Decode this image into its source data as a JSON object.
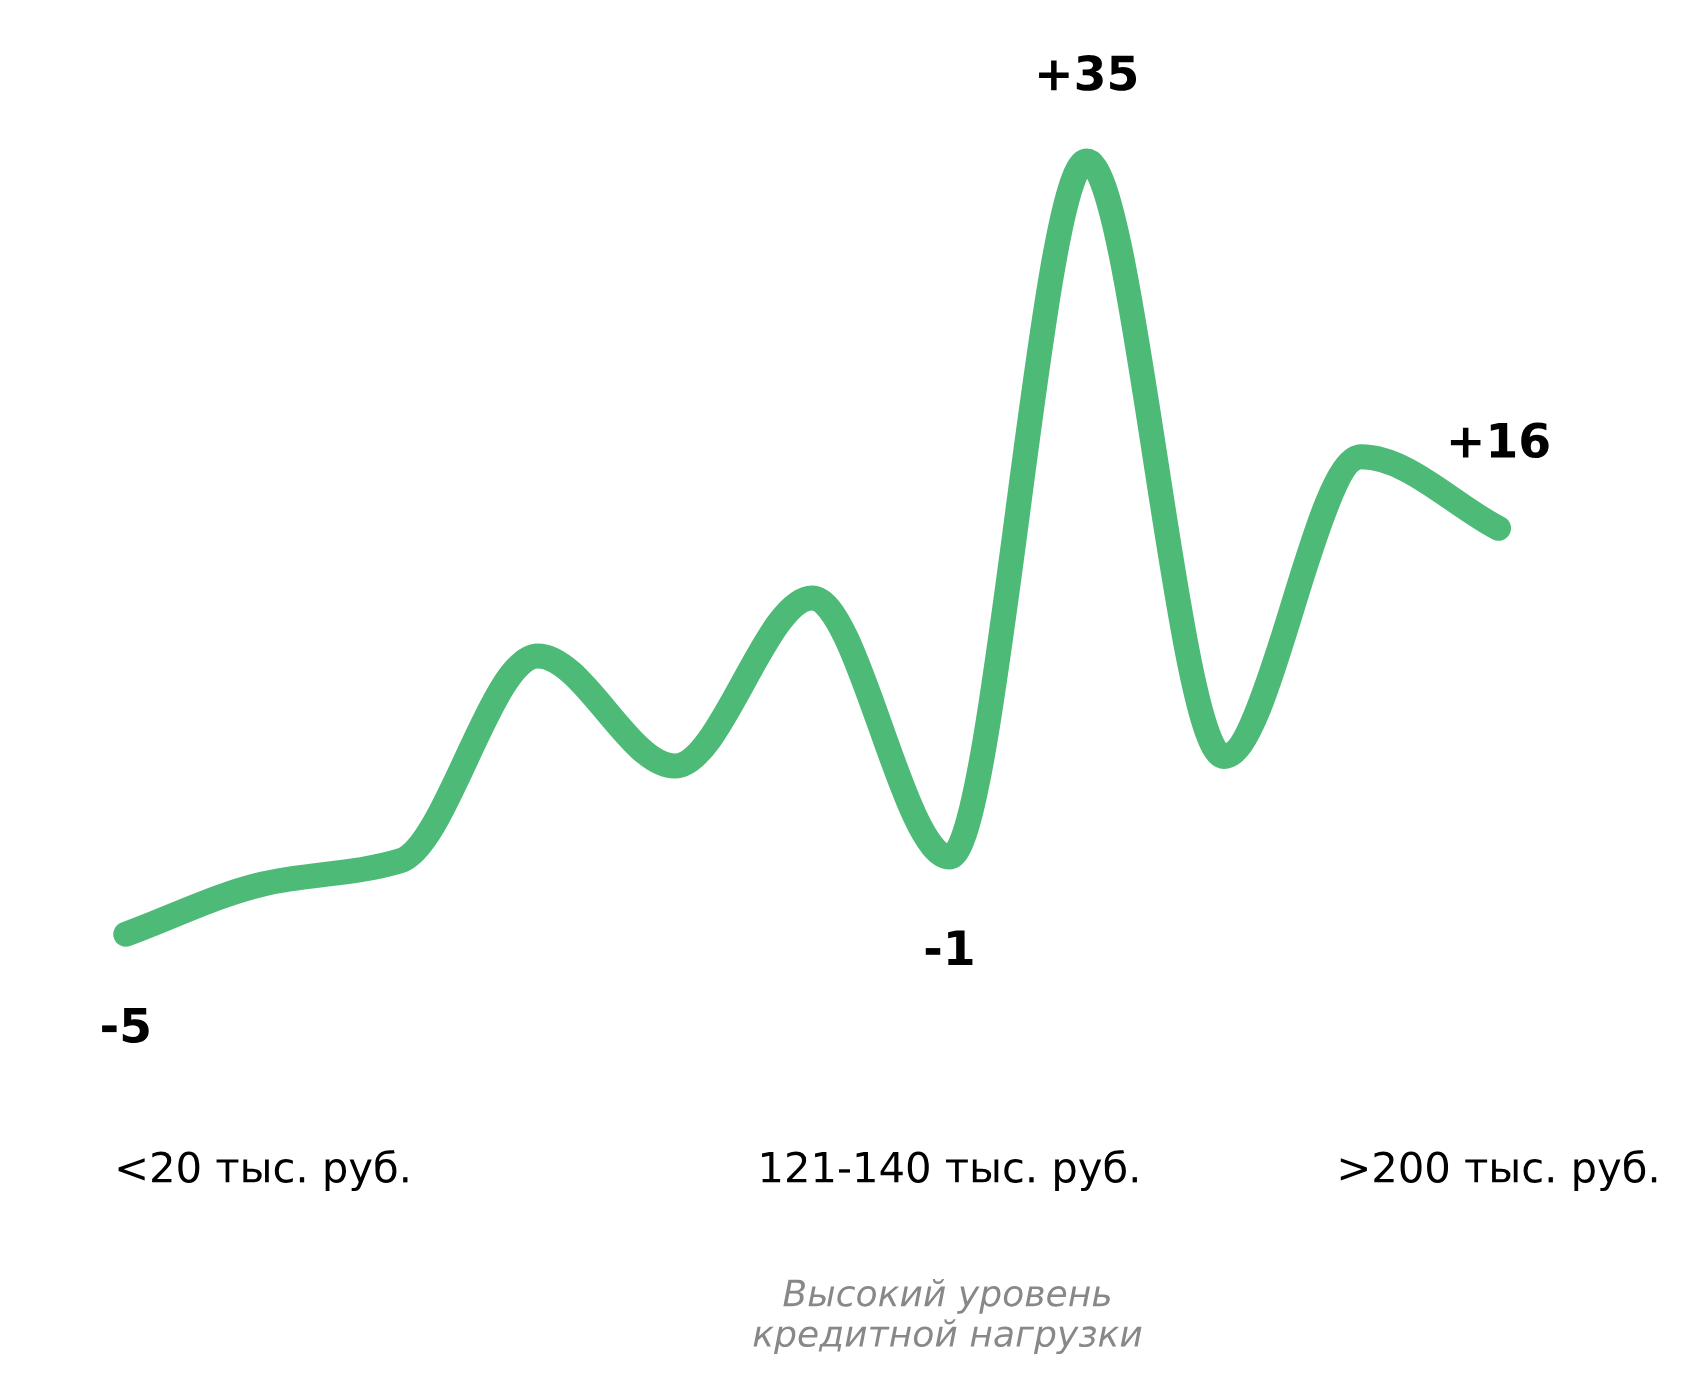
{
  "chart_data": {
    "type": "line",
    "categories": [
      null,
      "<20 тыс. руб.",
      null,
      null,
      null,
      null,
      "121-140 тыс. руб.",
      null,
      null,
      null,
      ">200 тыс. руб."
    ],
    "series": [
      {
        "color": "#4dbb77",
        "values": [
          -5,
          -2.4,
          -1.2,
          9.4,
          3.7,
          12.4,
          -1,
          35,
          4.2,
          19.7,
          16
        ],
        "value_labels": [
          "-5",
          null,
          null,
          null,
          null,
          null,
          "-1",
          "+35",
          null,
          null,
          "+16"
        ]
      }
    ],
    "annotations": [
      "Высокий уровень\nкредитной нагрузки"
    ],
    "grid": false,
    "legend": false,
    "line_style": "solid"
  }
}
